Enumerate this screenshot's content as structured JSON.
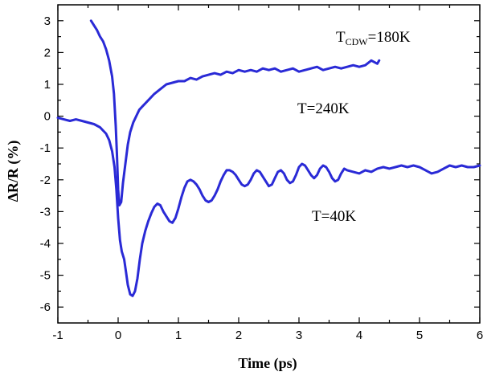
{
  "chart_data": {
    "type": "line",
    "title": "",
    "xlabel": "Time (ps)",
    "ylabel": "ΔR/R (%)",
    "xlim": [
      -1,
      6
    ],
    "ylim": [
      -6.5,
      3.5
    ],
    "x_ticks": [
      -1,
      0,
      1,
      2,
      3,
      4,
      5,
      6
    ],
    "y_ticks": [
      -6,
      -5,
      -4,
      -3,
      -2,
      -1,
      0,
      1,
      2,
      3
    ],
    "grid": false,
    "legend": "none",
    "line_color": "#2a2ad6",
    "annotations": {
      "tcdw_main": "T",
      "tcdw_sub": "CDW",
      "tcdw_value": "=180K",
      "t240": "T=240K",
      "t40": "T=40K"
    },
    "series": [
      {
        "label": "T=240K",
        "points": [
          [
            -0.45,
            3.0
          ],
          [
            -0.4,
            2.85
          ],
          [
            -0.35,
            2.7
          ],
          [
            -0.3,
            2.5
          ],
          [
            -0.25,
            2.35
          ],
          [
            -0.2,
            2.1
          ],
          [
            -0.15,
            1.75
          ],
          [
            -0.1,
            1.25
          ],
          [
            -0.07,
            0.7
          ],
          [
            -0.04,
            -0.3
          ],
          [
            -0.02,
            -1.2
          ],
          [
            0.0,
            -2.3
          ],
          [
            0.02,
            -2.8
          ],
          [
            0.05,
            -2.7
          ],
          [
            0.08,
            -2.1
          ],
          [
            0.12,
            -1.5
          ],
          [
            0.16,
            -0.9
          ],
          [
            0.2,
            -0.5
          ],
          [
            0.25,
            -0.2
          ],
          [
            0.3,
            0.0
          ],
          [
            0.35,
            0.2
          ],
          [
            0.4,
            0.3
          ],
          [
            0.5,
            0.5
          ],
          [
            0.6,
            0.7
          ],
          [
            0.7,
            0.85
          ],
          [
            0.8,
            1.0
          ],
          [
            0.9,
            1.05
          ],
          [
            1.0,
            1.1
          ],
          [
            1.1,
            1.1
          ],
          [
            1.2,
            1.2
          ],
          [
            1.3,
            1.15
          ],
          [
            1.4,
            1.25
          ],
          [
            1.5,
            1.3
          ],
          [
            1.6,
            1.35
          ],
          [
            1.7,
            1.3
          ],
          [
            1.8,
            1.4
          ],
          [
            1.9,
            1.35
          ],
          [
            2.0,
            1.45
          ],
          [
            2.1,
            1.4
          ],
          [
            2.2,
            1.45
          ],
          [
            2.3,
            1.4
          ],
          [
            2.4,
            1.5
          ],
          [
            2.5,
            1.45
          ],
          [
            2.6,
            1.5
          ],
          [
            2.7,
            1.4
          ],
          [
            2.8,
            1.45
          ],
          [
            2.9,
            1.5
          ],
          [
            3.0,
            1.4
          ],
          [
            3.1,
            1.45
          ],
          [
            3.2,
            1.5
          ],
          [
            3.3,
            1.55
          ],
          [
            3.4,
            1.45
          ],
          [
            3.5,
            1.5
          ],
          [
            3.6,
            1.55
          ],
          [
            3.7,
            1.5
          ],
          [
            3.8,
            1.55
          ],
          [
            3.9,
            1.6
          ],
          [
            4.0,
            1.55
          ],
          [
            4.1,
            1.6
          ],
          [
            4.2,
            1.75
          ],
          [
            4.3,
            1.65
          ],
          [
            4.33,
            1.75
          ]
        ]
      },
      {
        "label": "T=40K",
        "points": [
          [
            -1.0,
            -0.05
          ],
          [
            -0.9,
            -0.1
          ],
          [
            -0.8,
            -0.15
          ],
          [
            -0.7,
            -0.1
          ],
          [
            -0.6,
            -0.15
          ],
          [
            -0.5,
            -0.2
          ],
          [
            -0.4,
            -0.25
          ],
          [
            -0.3,
            -0.35
          ],
          [
            -0.2,
            -0.55
          ],
          [
            -0.15,
            -0.75
          ],
          [
            -0.1,
            -1.1
          ],
          [
            -0.06,
            -1.6
          ],
          [
            -0.03,
            -2.3
          ],
          [
            0.0,
            -3.2
          ],
          [
            0.03,
            -3.9
          ],
          [
            0.06,
            -4.25
          ],
          [
            0.1,
            -4.5
          ],
          [
            0.13,
            -4.9
          ],
          [
            0.16,
            -5.3
          ],
          [
            0.2,
            -5.6
          ],
          [
            0.24,
            -5.65
          ],
          [
            0.28,
            -5.5
          ],
          [
            0.32,
            -5.1
          ],
          [
            0.36,
            -4.5
          ],
          [
            0.4,
            -4.0
          ],
          [
            0.45,
            -3.6
          ],
          [
            0.5,
            -3.3
          ],
          [
            0.55,
            -3.05
          ],
          [
            0.6,
            -2.85
          ],
          [
            0.65,
            -2.75
          ],
          [
            0.7,
            -2.8
          ],
          [
            0.75,
            -3.0
          ],
          [
            0.8,
            -3.15
          ],
          [
            0.85,
            -3.3
          ],
          [
            0.9,
            -3.35
          ],
          [
            0.95,
            -3.2
          ],
          [
            1.0,
            -2.9
          ],
          [
            1.05,
            -2.55
          ],
          [
            1.1,
            -2.25
          ],
          [
            1.15,
            -2.05
          ],
          [
            1.2,
            -2.0
          ],
          [
            1.25,
            -2.05
          ],
          [
            1.3,
            -2.15
          ],
          [
            1.35,
            -2.3
          ],
          [
            1.4,
            -2.5
          ],
          [
            1.45,
            -2.65
          ],
          [
            1.5,
            -2.7
          ],
          [
            1.55,
            -2.65
          ],
          [
            1.6,
            -2.5
          ],
          [
            1.65,
            -2.3
          ],
          [
            1.7,
            -2.05
          ],
          [
            1.75,
            -1.85
          ],
          [
            1.8,
            -1.7
          ],
          [
            1.85,
            -1.7
          ],
          [
            1.9,
            -1.75
          ],
          [
            1.95,
            -1.85
          ],
          [
            2.0,
            -2.0
          ],
          [
            2.05,
            -2.15
          ],
          [
            2.1,
            -2.2
          ],
          [
            2.15,
            -2.15
          ],
          [
            2.2,
            -2.0
          ],
          [
            2.25,
            -1.8
          ],
          [
            2.3,
            -1.7
          ],
          [
            2.35,
            -1.75
          ],
          [
            2.4,
            -1.9
          ],
          [
            2.45,
            -2.05
          ],
          [
            2.5,
            -2.2
          ],
          [
            2.55,
            -2.15
          ],
          [
            2.6,
            -1.95
          ],
          [
            2.65,
            -1.75
          ],
          [
            2.7,
            -1.7
          ],
          [
            2.75,
            -1.8
          ],
          [
            2.8,
            -2.0
          ],
          [
            2.85,
            -2.1
          ],
          [
            2.9,
            -2.05
          ],
          [
            2.95,
            -1.85
          ],
          [
            3.0,
            -1.6
          ],
          [
            3.05,
            -1.5
          ],
          [
            3.1,
            -1.55
          ],
          [
            3.15,
            -1.7
          ],
          [
            3.2,
            -1.85
          ],
          [
            3.25,
            -1.95
          ],
          [
            3.3,
            -1.85
          ],
          [
            3.35,
            -1.65
          ],
          [
            3.4,
            -1.55
          ],
          [
            3.45,
            -1.6
          ],
          [
            3.5,
            -1.75
          ],
          [
            3.55,
            -1.95
          ],
          [
            3.6,
            -2.05
          ],
          [
            3.65,
            -2.0
          ],
          [
            3.7,
            -1.8
          ],
          [
            3.75,
            -1.65
          ],
          [
            3.8,
            -1.7
          ],
          [
            3.9,
            -1.75
          ],
          [
            4.0,
            -1.8
          ],
          [
            4.1,
            -1.7
          ],
          [
            4.2,
            -1.75
          ],
          [
            4.3,
            -1.65
          ],
          [
            4.4,
            -1.6
          ],
          [
            4.5,
            -1.65
          ],
          [
            4.6,
            -1.6
          ],
          [
            4.7,
            -1.55
          ],
          [
            4.8,
            -1.6
          ],
          [
            4.9,
            -1.55
          ],
          [
            5.0,
            -1.6
          ],
          [
            5.1,
            -1.7
          ],
          [
            5.2,
            -1.8
          ],
          [
            5.3,
            -1.75
          ],
          [
            5.4,
            -1.65
          ],
          [
            5.5,
            -1.55
          ],
          [
            5.6,
            -1.6
          ],
          [
            5.7,
            -1.55
          ],
          [
            5.8,
            -1.6
          ],
          [
            5.9,
            -1.6
          ],
          [
            6.0,
            -1.55
          ]
        ]
      }
    ]
  }
}
